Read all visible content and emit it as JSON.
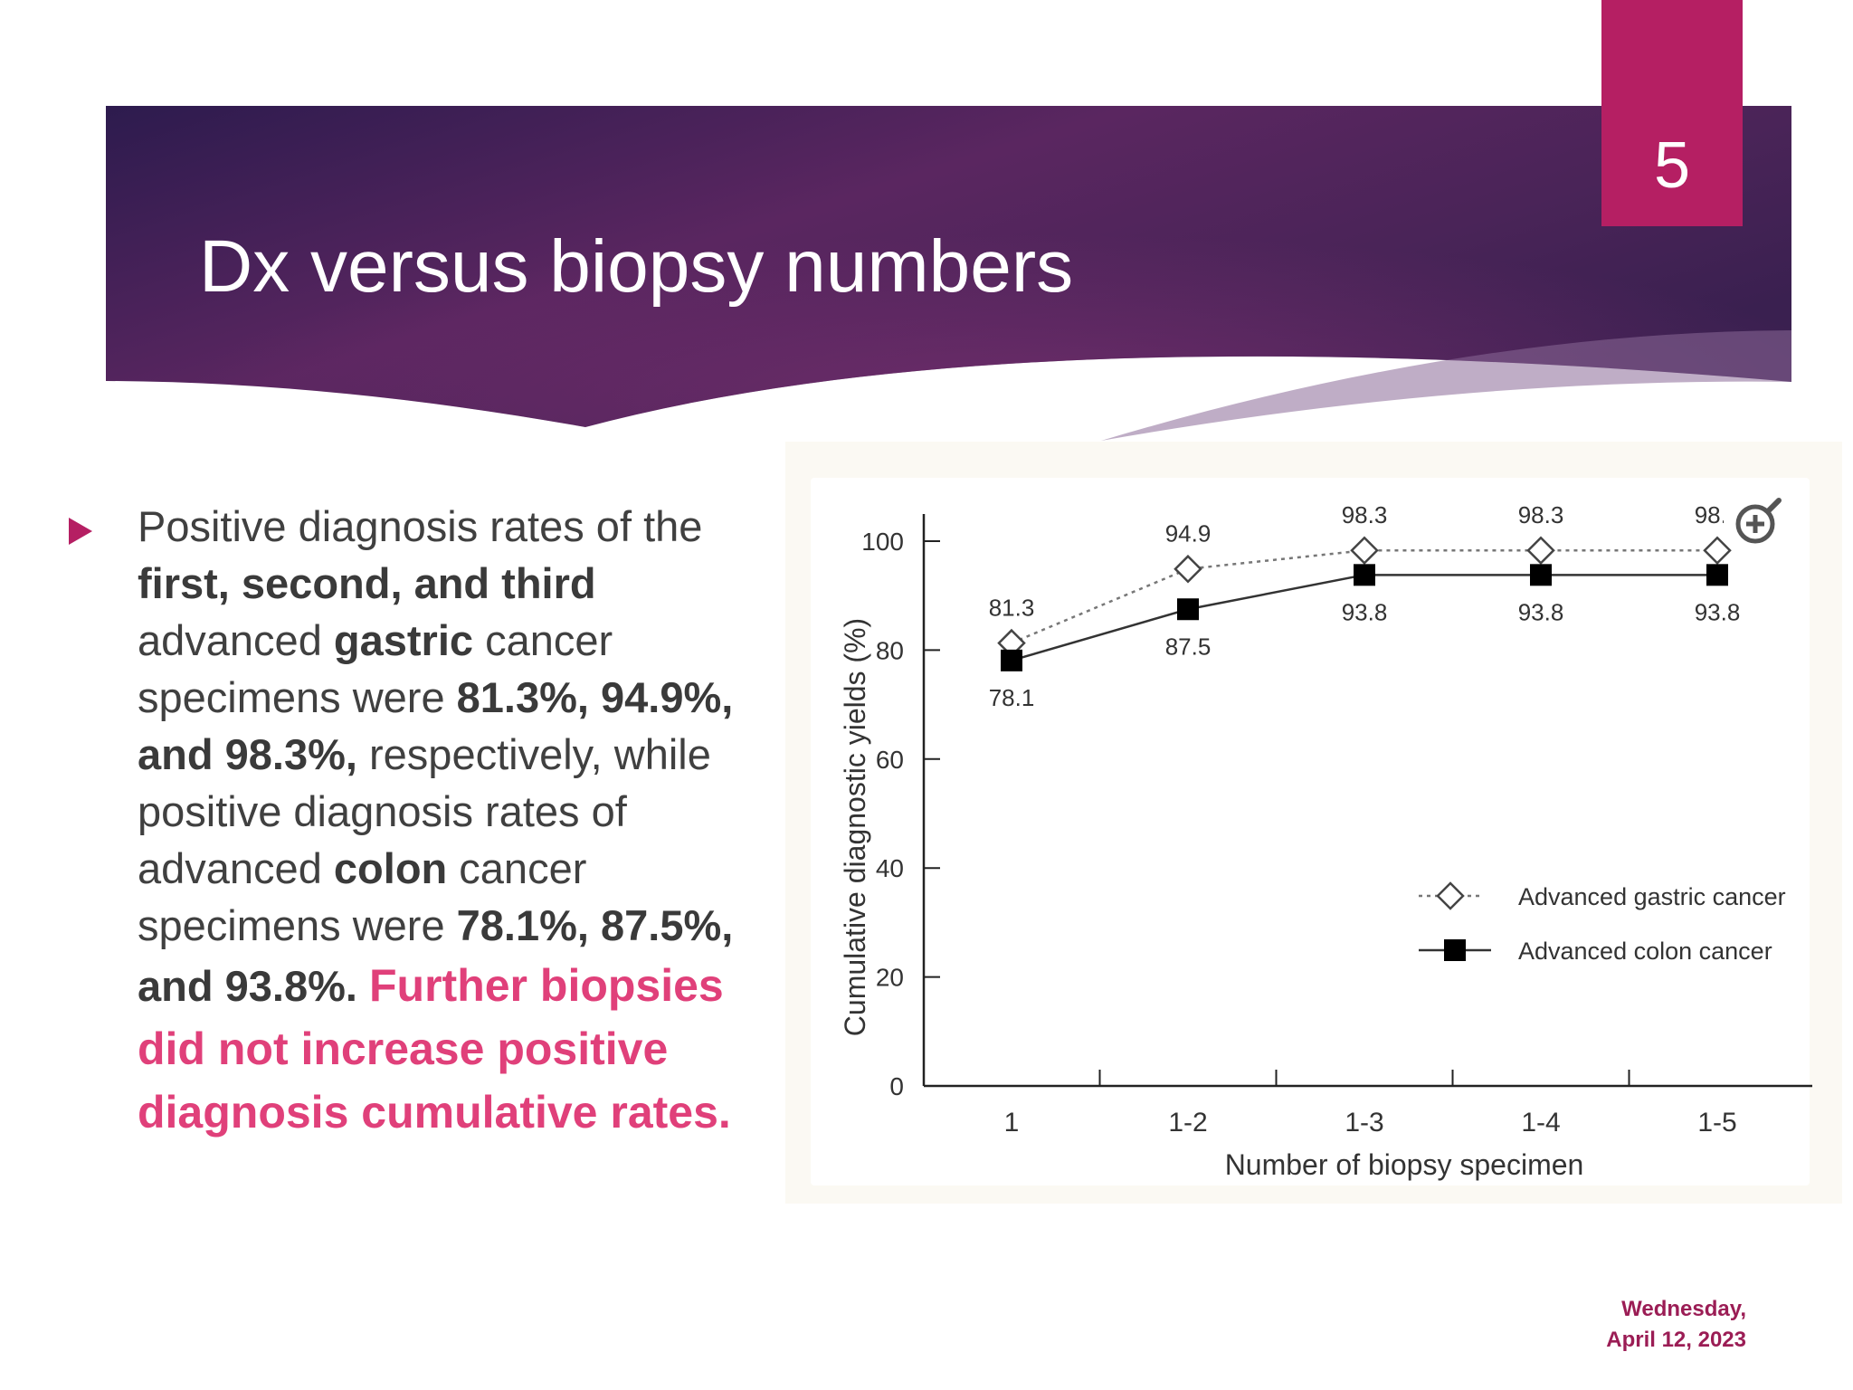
{
  "slide": {
    "title": "Dx versus biopsy numbers",
    "page_number": "5",
    "date_line1": "Wednesday,",
    "date_line2": "April 12, 2023"
  },
  "text": {
    "p1": "Positive diagnosis rates of the ",
    "b1": "first, second, and third",
    "p2": " advanced ",
    "b2": "gastric",
    "p3": " cancer specimens were ",
    "b3": "81.3%, 94.9%, and 98.3%,",
    "p4": " respectively, while positive diagnosis rates of advanced ",
    "b4": "colon",
    "p5": " cancer specimens were ",
    "b5": "78.1%, 87.5%, and 93.8%.",
    "highlight": "Further biopsies did not increase positive diagnosis cumulative rates."
  },
  "colors": {
    "banner_dark": "#2d1b4e",
    "banner_mid": "#6a2a6a",
    "accent": "#b51f63",
    "highlight_text": "#e0407a"
  },
  "icons": {
    "bullet": "triangle-bullet-icon",
    "zoom": "zoom-in-icon"
  },
  "chart_data": {
    "type": "line",
    "categories": [
      "1",
      "1-2",
      "1-3",
      "1-4",
      "1-5"
    ],
    "series": [
      {
        "name": "Advanced gastric cancer",
        "values": [
          81.3,
          94.9,
          98.3,
          98.3,
          98.3
        ],
        "marker": "open-diamond",
        "line": "dotted"
      },
      {
        "name": "Advanced colon cancer",
        "values": [
          78.1,
          87.5,
          93.8,
          93.8,
          93.8
        ],
        "marker": "filled-square",
        "line": "solid"
      }
    ],
    "title": "",
    "xlabel": "Number of biopsy specimen",
    "ylabel": "Cumulative diagnostic yields (%)",
    "ylim": [
      0,
      100
    ],
    "yticks": [
      0,
      20,
      40,
      60,
      80,
      100
    ],
    "grid": false,
    "legend_position": "bottom-right"
  }
}
